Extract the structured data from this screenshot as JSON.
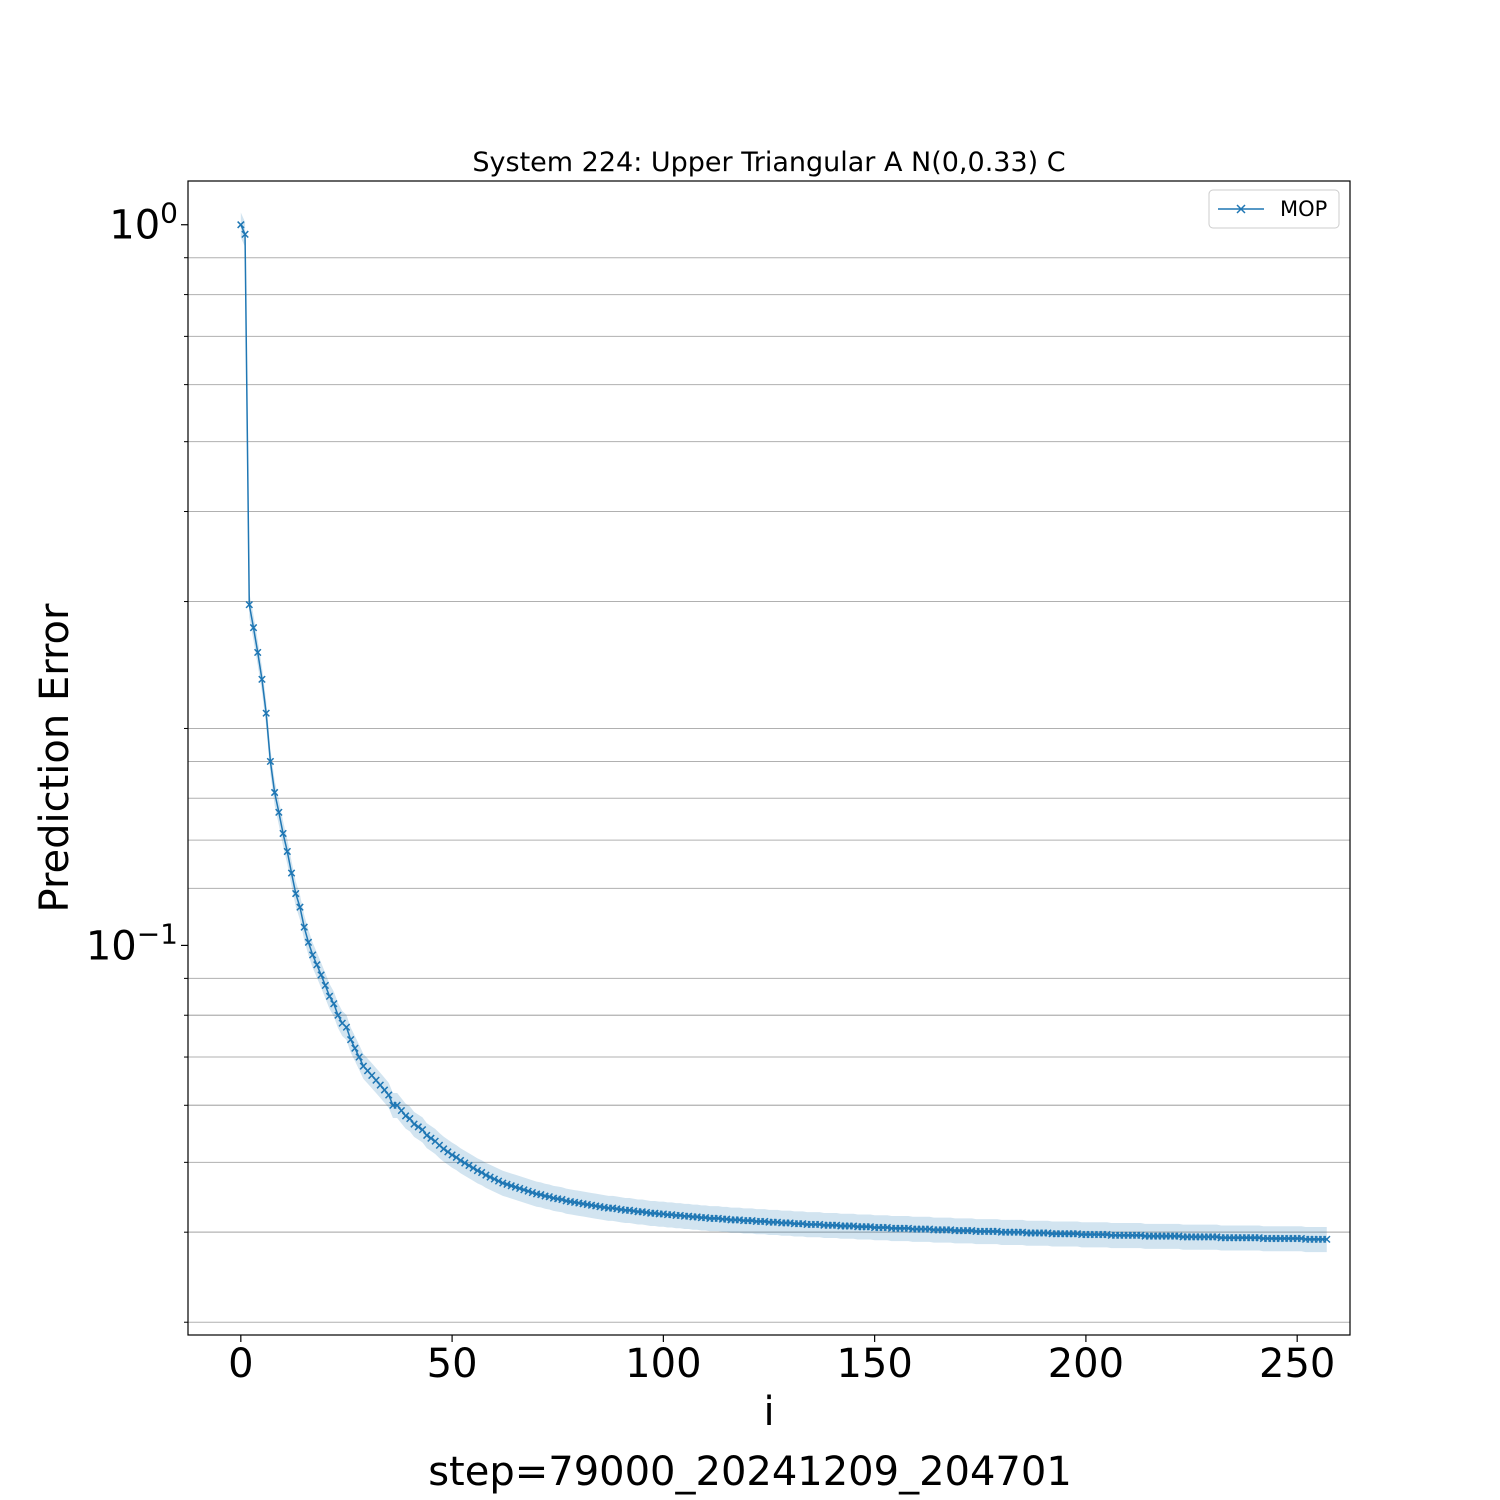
{
  "chart_data": {
    "type": "line",
    "title": "System 224: Upper Triangular A N(0,0.33) C",
    "xlabel": "i",
    "ylabel": "Prediction Error",
    "footer": "step=79000_20241209_204701",
    "xscale": "linear",
    "yscale": "log",
    "xlim": [
      -12.5,
      262.5
    ],
    "ylim": [
      0.0288,
      1.15
    ],
    "xticks": [
      0,
      50,
      100,
      150,
      200,
      250
    ],
    "xtick_labels": [
      "0",
      "50",
      "100",
      "150",
      "200",
      "250"
    ],
    "ytick_labels": [
      {
        "base": "10",
        "exp": "0"
      },
      {
        "base": "10",
        "exp": "−1"
      }
    ],
    "grid": "y-minor",
    "legend": "top-right",
    "series": [
      {
        "name": "MOP",
        "color": "#1f77b4",
        "marker": "x",
        "x_start": 0,
        "x_step": 1,
        "values": [
          1.0,
          0.97,
          0.297,
          0.276,
          0.255,
          0.234,
          0.21,
          0.18,
          0.163,
          0.153,
          0.143,
          0.135,
          0.126,
          0.118,
          0.113,
          0.106,
          0.101,
          0.097,
          0.094,
          0.091,
          0.088,
          0.085,
          0.083,
          0.08,
          0.078,
          0.077,
          0.074,
          0.072,
          0.07,
          0.068,
          0.067,
          0.066,
          0.065,
          0.064,
          0.063,
          0.062,
          0.06,
          0.06,
          0.059,
          0.058,
          0.0575,
          0.0565,
          0.056,
          0.0555,
          0.0545,
          0.054,
          0.0535,
          0.0528,
          0.0522,
          0.0517,
          0.0512,
          0.0508,
          0.0503,
          0.0499,
          0.0495,
          0.0491,
          0.0487,
          0.0484,
          0.048,
          0.0477,
          0.0474,
          0.0471,
          0.0468,
          0.0466,
          0.0464,
          0.0462,
          0.046,
          0.0458,
          0.0456,
          0.0454,
          0.0452,
          0.0451,
          0.0449,
          0.0448,
          0.0446,
          0.0445,
          0.0444,
          0.0442,
          0.0441,
          0.044,
          0.0439,
          0.0438,
          0.0437,
          0.0436,
          0.0435,
          0.0434,
          0.0433,
          0.0432,
          0.0432,
          0.0431,
          0.043,
          0.0429,
          0.0429,
          0.0428,
          0.0427,
          0.0427,
          0.0426,
          0.0425,
          0.0425,
          0.0424,
          0.0424,
          0.0423,
          0.0423,
          0.0422,
          0.0422,
          0.0421,
          0.0421,
          0.042,
          0.042,
          0.0419,
          0.0419,
          0.0418,
          0.0418,
          0.0418,
          0.0417,
          0.0417,
          0.0416,
          0.0416,
          0.0416,
          0.0415,
          0.0415,
          0.0415,
          0.0414,
          0.0414,
          0.0414,
          0.0413,
          0.0413,
          0.0413,
          0.0412,
          0.0412,
          0.0412,
          0.0411,
          0.0411,
          0.0411,
          0.041,
          0.041,
          0.041,
          0.041,
          0.0409,
          0.0409,
          0.0409,
          0.0409,
          0.0408,
          0.0408,
          0.0408,
          0.0408,
          0.0407,
          0.0407,
          0.0407,
          0.0407,
          0.0406,
          0.0406,
          0.0406,
          0.0406,
          0.0405,
          0.0405,
          0.0405,
          0.0405,
          0.0405,
          0.0404,
          0.0404,
          0.0404,
          0.0404,
          0.0404,
          0.0403,
          0.0403,
          0.0403,
          0.0403,
          0.0403,
          0.0402,
          0.0402,
          0.0402,
          0.0402,
          0.0402,
          0.0401,
          0.0401,
          0.0401,
          0.0401,
          0.0401,
          0.0401,
          0.04,
          0.04,
          0.04,
          0.04,
          0.04,
          0.04,
          0.0399,
          0.0399,
          0.0399,
          0.0399,
          0.0399,
          0.0399,
          0.0398,
          0.0398,
          0.0398,
          0.0398,
          0.0398,
          0.0398,
          0.0398,
          0.0397,
          0.0397,
          0.0397,
          0.0397,
          0.0397,
          0.0397,
          0.0397,
          0.0396,
          0.0396,
          0.0396,
          0.0396,
          0.0396,
          0.0396,
          0.0396,
          0.0396,
          0.0395,
          0.0395,
          0.0395,
          0.0395,
          0.0395,
          0.0395,
          0.0395,
          0.0395,
          0.0395,
          0.0394,
          0.0394,
          0.0394,
          0.0394,
          0.0394,
          0.0394,
          0.0394,
          0.0394,
          0.0394,
          0.0393,
          0.0393,
          0.0393,
          0.0393,
          0.0393,
          0.0393,
          0.0393,
          0.0393,
          0.0393,
          0.0393,
          0.0392,
          0.0392,
          0.0392,
          0.0392,
          0.0392,
          0.0392,
          0.0392,
          0.0392,
          0.0392,
          0.0392,
          0.0391,
          0.0391,
          0.0391,
          0.0391,
          0.0391,
          0.0391
        ],
        "band_halfwidth_fraction": 0.04
      }
    ]
  }
}
